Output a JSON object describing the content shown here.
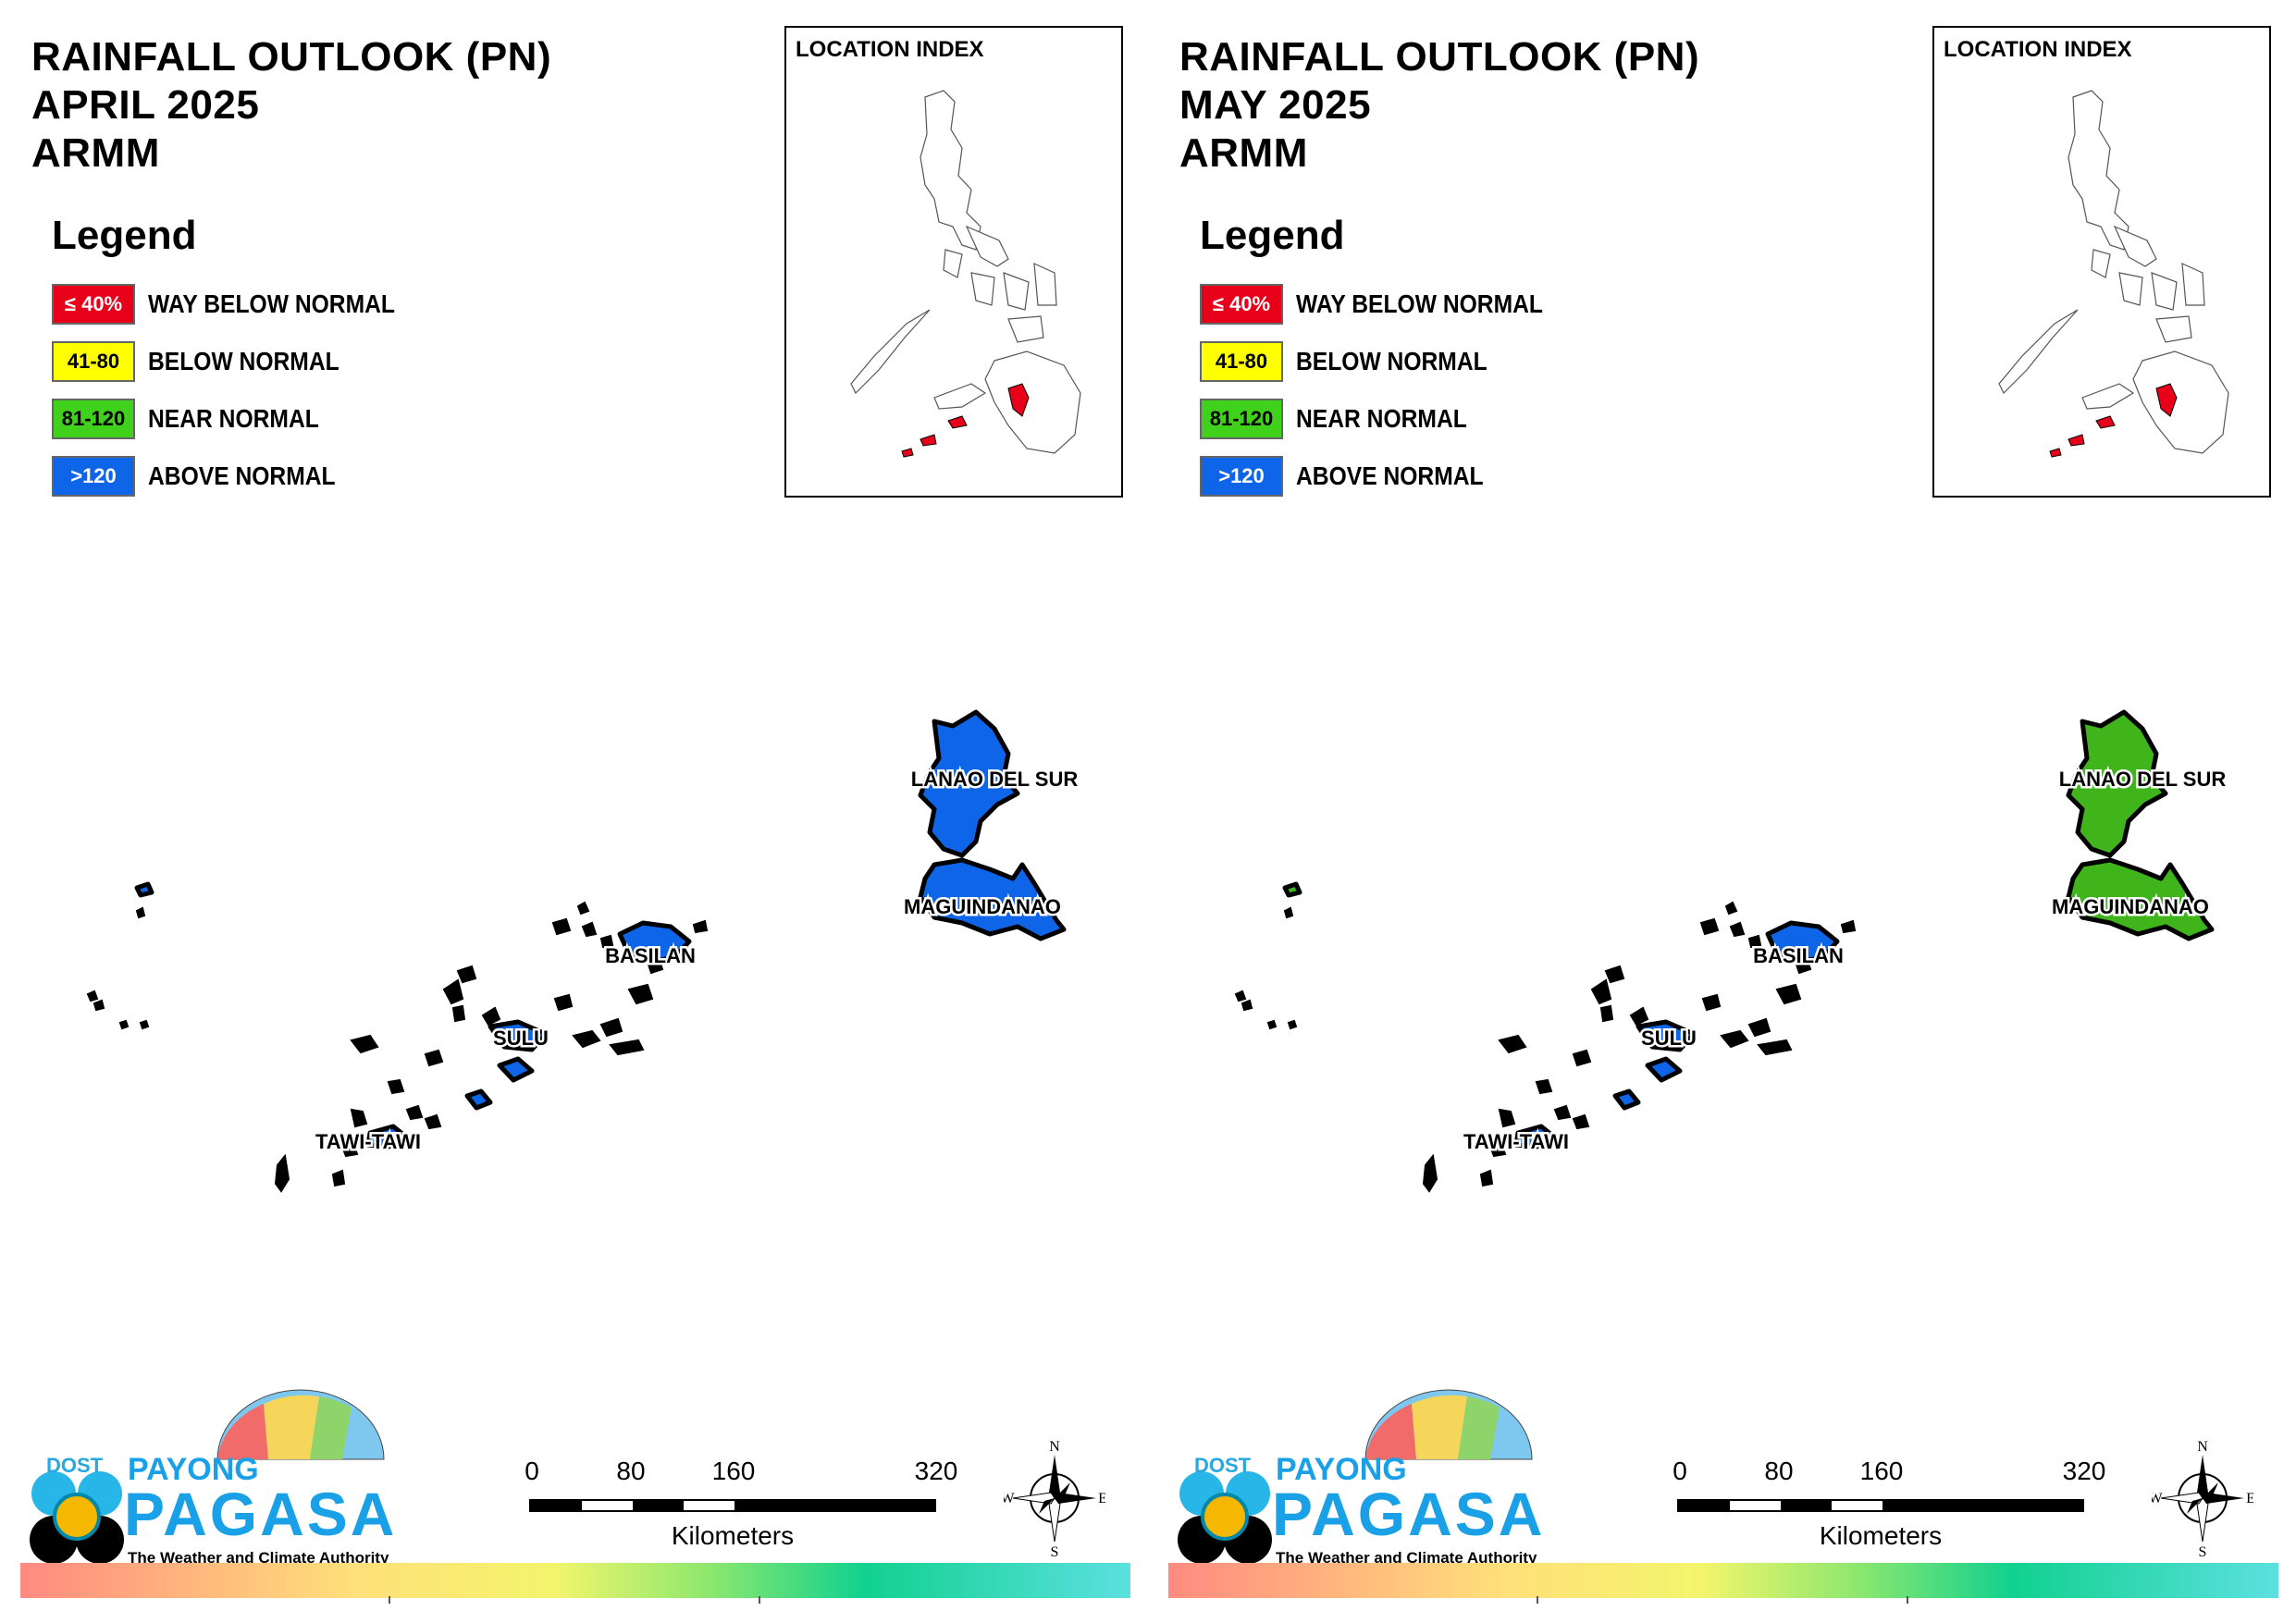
{
  "panels": [
    {
      "title": {
        "line1": "RAINFALL OUTLOOK (PN)",
        "line2": "APRIL 2025",
        "line3": "ARMM"
      },
      "fill_color": "#0f65e8"
    },
    {
      "title": {
        "line1": "RAINFALL OUTLOOK (PN)",
        "line2": "MAY 2025",
        "line3": "ARMM"
      },
      "fill_color": "#3fb41b"
    }
  ],
  "legend": {
    "title": "Legend",
    "items": [
      {
        "range": "≤ 40%",
        "label": "WAY BELOW NORMAL",
        "color": "#e8001b"
      },
      {
        "range": "41-80",
        "label": "BELOW NORMAL",
        "color": "#ffff00"
      },
      {
        "range": "81-120",
        "label": "NEAR NORMAL",
        "color": "#3fd11b"
      },
      {
        "range": ">120",
        "label": "ABOVE NORMAL",
        "color": "#0f65e8"
      }
    ]
  },
  "location_index": {
    "title": "LOCATION INDEX"
  },
  "map_labels": {
    "lanao": "LANAO DEL SUR",
    "maguindanao": "MAGUINDANAO",
    "basilan": "BASILAN",
    "sulu": "SULU",
    "tawi": "TAWI-TAWI"
  },
  "logo": {
    "dost": "DOST",
    "payong": "PAYONG",
    "pagasa": "PAGASA",
    "tagline": "The Weather and Climate Authority"
  },
  "scale_bar": {
    "ticks": [
      "0",
      "80",
      "160",
      "320"
    ],
    "unit": "Kilometers"
  },
  "compass": {
    "n": "N",
    "e": "E",
    "s": "S",
    "w": "W"
  }
}
